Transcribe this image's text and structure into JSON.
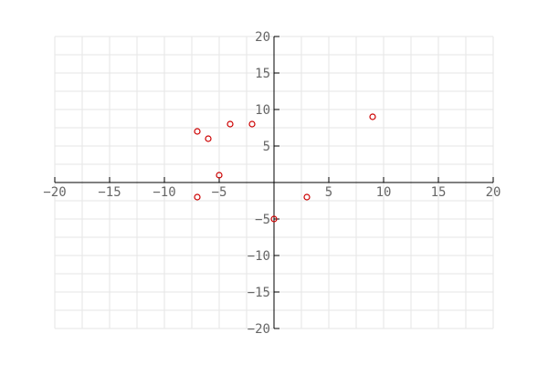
{
  "chart_data": {
    "type": "scatter",
    "title": "",
    "xlabel": "",
    "ylabel": "",
    "xlim": [
      -20,
      20
    ],
    "ylim": [
      -20,
      20
    ],
    "grid": true,
    "grid_step": 2.5,
    "axes_through_origin": true,
    "x_ticks": [
      -20,
      -15,
      -10,
      -5,
      5,
      10,
      15,
      20
    ],
    "y_ticks": [
      -20,
      -15,
      -10,
      -5,
      5,
      10,
      15,
      20
    ],
    "marker": "open-circle",
    "marker_color": "#cc0000",
    "series": [
      {
        "points": [
          {
            "x": -7,
            "y": 7
          },
          {
            "x": -6,
            "y": 6
          },
          {
            "x": -4,
            "y": 8
          },
          {
            "x": -2,
            "y": 8
          },
          {
            "x": -5,
            "y": 1
          },
          {
            "x": -7,
            "y": -2
          },
          {
            "x": 0,
            "y": -5
          },
          {
            "x": 3,
            "y": -2
          },
          {
            "x": 9,
            "y": 9
          }
        ]
      }
    ]
  }
}
